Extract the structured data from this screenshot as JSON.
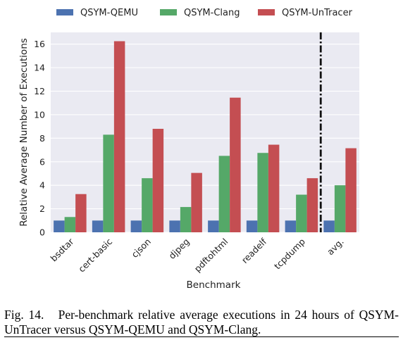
{
  "caption": {
    "label": "Fig. 14.",
    "text": "Per-benchmark relative average executions in 24 hours of QSYM-UnTracer versus QSYM-QEMU and QSYM-Clang."
  },
  "chart_data": {
    "type": "bar",
    "xlabel": "Benchmark",
    "ylabel": "Relative Average Number of Executions",
    "categories": [
      "bsdtar",
      "cert-basic",
      "cjson",
      "djpeg",
      "pdftohtml",
      "readelf",
      "tcpdump",
      "avg."
    ],
    "ylim": [
      0,
      17
    ],
    "yticks": [
      0,
      2,
      4,
      6,
      8,
      10,
      12,
      14,
      16
    ],
    "grid": true,
    "legend": "top-center",
    "series": [
      {
        "name": "QSYM-QEMU",
        "color": "#4c72b0",
        "values": [
          1,
          1,
          1,
          1,
          1,
          1,
          1,
          1
        ]
      },
      {
        "name": "QSYM-Clang",
        "color": "#55a868",
        "values": [
          1.3,
          8.3,
          4.6,
          2.15,
          6.5,
          6.75,
          3.2,
          4.0
        ]
      },
      {
        "name": "QSYM-UnTracer",
        "color": "#c44e52",
        "values": [
          3.25,
          16.25,
          8.8,
          5.05,
          11.45,
          7.45,
          4.6,
          7.15
        ]
      }
    ],
    "separator_before_category": "avg."
  }
}
